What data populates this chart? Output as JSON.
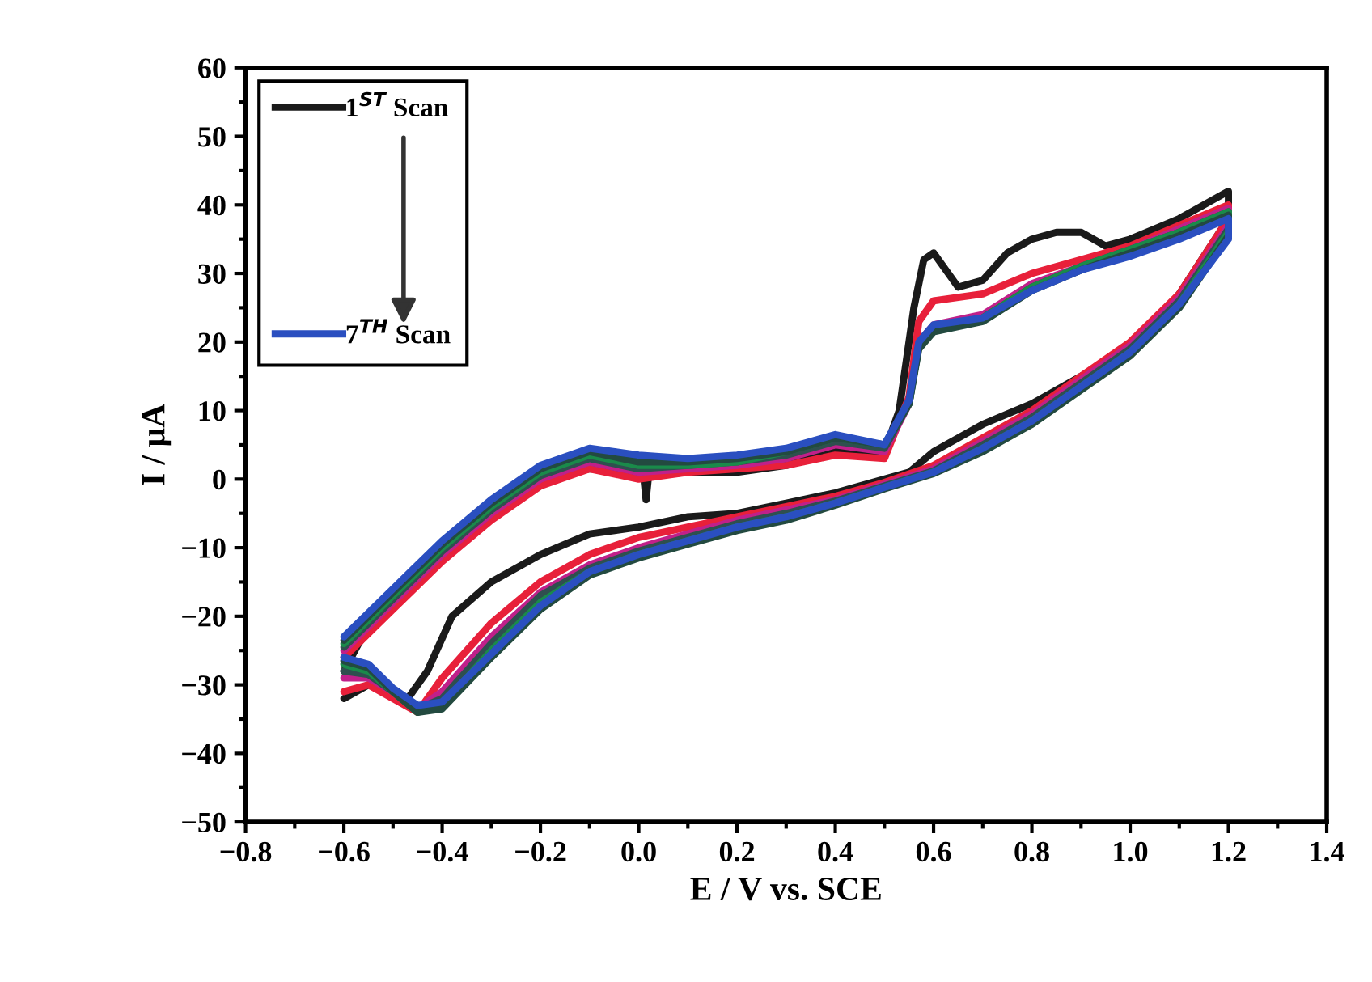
{
  "chart_data": {
    "type": "line",
    "xlabel": "E / V vs. SCE",
    "ylabel": "I / μA",
    "xlim": [
      -0.8,
      1.4
    ],
    "ylim": [
      -50,
      60
    ],
    "xticks": [
      -0.8,
      {
        "value": -0.7,
        "label": null
      },
      -0.6,
      {
        "value": -0.5,
        "label": null
      },
      -0.4,
      {
        "value": -0.3,
        "label": null
      },
      -0.2,
      {
        "value": -0.1,
        "label": null
      },
      {
        "value": 0,
        "label": "0.0"
      },
      {
        "value": 0.1,
        "label": null
      },
      0.2,
      {
        "value": 0.3,
        "label": null
      },
      0.4,
      {
        "value": 0.5,
        "label": null
      },
      0.6,
      {
        "value": 0.7,
        "label": null
      },
      0.8,
      {
        "value": 0.9,
        "label": null
      },
      {
        "value": 1,
        "label": "1.0"
      },
      {
        "value": 1.1,
        "label": null
      },
      1.2,
      {
        "value": 1.3,
        "label": null
      },
      1.4
    ],
    "yticks": [
      -50,
      {
        "value": -45,
        "label": null
      },
      -40,
      {
        "value": -35,
        "label": null
      },
      -30,
      {
        "value": -25,
        "label": null
      },
      -20,
      {
        "value": -15,
        "label": null
      },
      -10,
      {
        "value": -5,
        "label": null
      },
      0,
      {
        "value": 5,
        "label": null
      },
      10,
      {
        "value": 15,
        "label": null
      },
      20,
      {
        "value": 25,
        "label": null
      },
      30,
      {
        "value": 35,
        "label": null
      },
      40,
      {
        "value": 45,
        "label": null
      },
      50,
      {
        "value": 55,
        "label": null
      },
      60
    ],
    "grid": false,
    "legend": "top left",
    "line_style": "solid",
    "series": [
      {
        "name": "1$^{ST}$ Scan",
        "color": "#1a1a1a",
        "x": [
          -0.6,
          -0.55,
          -0.5,
          -0.47,
          -0.43,
          -0.38,
          -0.3,
          -0.2,
          -0.1,
          0.0,
          0.1,
          0.2,
          0.3,
          0.4,
          0.5,
          0.55,
          0.6,
          0.7,
          0.8,
          0.9,
          1.0,
          1.1,
          1.2,
          1.2,
          1.1,
          1.0,
          0.95,
          0.9,
          0.85,
          0.8,
          0.75,
          0.7,
          0.65,
          0.6,
          0.58,
          0.56,
          0.53,
          0.5,
          0.4,
          0.3,
          0.2,
          0.1,
          0.02,
          0.015,
          0.01,
          0.0,
          -0.1,
          -0.2,
          -0.3,
          -0.4,
          -0.5,
          -0.57,
          -0.6
        ],
        "values": [
          -32,
          -30,
          -31,
          -32,
          -28,
          -20,
          -15,
          -11,
          -8,
          -7,
          -5.5,
          -5,
          -3.5,
          -2,
          0,
          1,
          4,
          8,
          11,
          15,
          19,
          27,
          38,
          42,
          38,
          35,
          34,
          36,
          36,
          35,
          33,
          29,
          28,
          33,
          32,
          25,
          10,
          4,
          4,
          2,
          1,
          1,
          0.5,
          -3,
          0.5,
          1,
          1.5,
          0,
          -4,
          -10,
          -17,
          -24,
          -28
        ]
      },
      {
        "color": "#e8203a",
        "x": [
          -0.6,
          -0.55,
          -0.5,
          -0.45,
          -0.4,
          -0.3,
          -0.2,
          -0.1,
          0.0,
          0.1,
          0.2,
          0.3,
          0.4,
          0.5,
          0.6,
          0.7,
          0.8,
          0.9,
          1.0,
          1.1,
          1.2,
          1.2,
          1.1,
          1.0,
          0.9,
          0.8,
          0.7,
          0.6,
          0.57,
          0.55,
          0.5,
          0.4,
          0.3,
          0.2,
          0.1,
          0.0,
          -0.1,
          -0.2,
          -0.3,
          -0.4,
          -0.5,
          -0.6
        ],
        "values": [
          -31,
          -30,
          -32,
          -34,
          -29,
          -21,
          -15,
          -11,
          -8.5,
          -7,
          -5.5,
          -4,
          -2.5,
          -0.5,
          2,
          6,
          10,
          15,
          20,
          27,
          38,
          40,
          37,
          34,
          32,
          30,
          27,
          26,
          23,
          12,
          3,
          3.5,
          2,
          1.5,
          1,
          0,
          1.5,
          -1,
          -6,
          -12,
          -19,
          -26
        ]
      },
      {
        "color": "#c0208a",
        "x": [
          -0.6,
          -0.55,
          -0.5,
          -0.45,
          -0.4,
          -0.3,
          -0.2,
          -0.1,
          0.0,
          0.1,
          0.2,
          0.3,
          0.4,
          0.5,
          0.6,
          0.7,
          0.8,
          0.9,
          1.0,
          1.1,
          1.2,
          1.2,
          1.1,
          1.0,
          0.9,
          0.8,
          0.7,
          0.6,
          0.57,
          0.55,
          0.5,
          0.4,
          0.3,
          0.2,
          0.1,
          0.0,
          -0.1,
          -0.2,
          -0.3,
          -0.4,
          -0.5,
          -0.6
        ],
        "values": [
          -29,
          -29,
          -31,
          -33.5,
          -31,
          -23,
          -16.5,
          -12.5,
          -10,
          -8,
          -6,
          -4.5,
          -3,
          -0.8,
          1.5,
          5.5,
          9.5,
          14.5,
          19.5,
          26.5,
          37,
          39.5,
          36.5,
          33.5,
          31,
          28.5,
          24,
          22.5,
          20,
          11,
          4,
          5,
          3,
          2,
          1.5,
          1,
          2.5,
          0,
          -5,
          -11,
          -18,
          -25
        ]
      },
      {
        "color": "#2f4f4f",
        "x": [
          -0.6,
          -0.55,
          -0.5,
          -0.45,
          -0.4,
          -0.3,
          -0.2,
          -0.1,
          0.0,
          0.1,
          0.2,
          0.3,
          0.4,
          0.5,
          0.6,
          0.7,
          0.8,
          0.9,
          1.0,
          1.1,
          1.2,
          1.2,
          1.1,
          1.0,
          0.9,
          0.8,
          0.7,
          0.6,
          0.57,
          0.55,
          0.5,
          0.4,
          0.3,
          0.2,
          0.1,
          0.0,
          -0.1,
          -0.2,
          -0.3,
          -0.4,
          -0.5,
          -0.6
        ],
        "values": [
          -28,
          -28.5,
          -31,
          -33.5,
          -32,
          -24,
          -17,
          -13,
          -10.5,
          -8.5,
          -6.5,
          -5,
          -3.2,
          -1,
          1.2,
          5,
          9,
          14,
          19,
          26,
          36.5,
          39,
          36,
          33.5,
          31,
          28,
          23.5,
          22,
          19.5,
          11,
          4.5,
          5.5,
          3.5,
          2.5,
          2,
          1.5,
          3,
          0.5,
          -4.5,
          -10.5,
          -17.5,
          -24.5
        ]
      },
      {
        "color": "#1a8a4a",
        "x": [
          -0.6,
          -0.55,
          -0.5,
          -0.45,
          -0.4,
          -0.3,
          -0.2,
          -0.1,
          0.0,
          0.1,
          0.2,
          0.3,
          0.4,
          0.5,
          0.6,
          0.7,
          0.8,
          0.9,
          1.0,
          1.1,
          1.2,
          1.2,
          1.1,
          1.0,
          0.9,
          0.8,
          0.7,
          0.6,
          0.57,
          0.55,
          0.5,
          0.4,
          0.3,
          0.2,
          0.1,
          0.0,
          -0.1,
          -0.2,
          -0.3,
          -0.4,
          -0.5,
          -0.6
        ],
        "values": [
          -27,
          -28,
          -31,
          -34,
          -33,
          -25,
          -18,
          -13.5,
          -11,
          -9,
          -7,
          -5.5,
          -3.5,
          -1.2,
          1,
          4.5,
          8.5,
          13.5,
          18.5,
          25.5,
          36,
          39,
          36,
          33.5,
          31,
          28,
          23.5,
          22,
          19.5,
          11,
          5,
          6,
          4,
          2.5,
          2,
          2,
          3.5,
          1,
          -4,
          -10,
          -17,
          -24
        ]
      },
      {
        "color": "#234a40",
        "x": [
          -0.6,
          -0.55,
          -0.5,
          -0.45,
          -0.4,
          -0.3,
          -0.2,
          -0.1,
          0.0,
          0.1,
          0.2,
          0.3,
          0.4,
          0.5,
          0.6,
          0.7,
          0.8,
          0.9,
          1.0,
          1.1,
          1.2,
          1.2,
          1.1,
          1.0,
          0.9,
          0.8,
          0.7,
          0.6,
          0.57,
          0.55,
          0.5,
          0.4,
          0.3,
          0.2,
          0.1,
          0.0,
          -0.1,
          -0.2,
          -0.3,
          -0.4,
          -0.5,
          -0.6
        ],
        "values": [
          -26.5,
          -27.5,
          -31,
          -34,
          -33.5,
          -26,
          -19,
          -14,
          -11.5,
          -9.5,
          -7.5,
          -6,
          -3.8,
          -1.4,
          0.8,
          4,
          8,
          13,
          18,
          25,
          35.5,
          38.5,
          35.5,
          33,
          30.5,
          27.5,
          23,
          21.5,
          19,
          11,
          5,
          6,
          4,
          3,
          2.5,
          2.5,
          4,
          1.5,
          -3.5,
          -9.5,
          -16.5,
          -23.5
        ]
      },
      {
        "name": "7$^{TH}$ Scan",
        "color": "#2a4fc0",
        "x": [
          -0.6,
          -0.55,
          -0.5,
          -0.45,
          -0.4,
          -0.3,
          -0.2,
          -0.1,
          0.0,
          0.1,
          0.2,
          0.3,
          0.4,
          0.5,
          0.6,
          0.7,
          0.8,
          0.9,
          1.0,
          1.1,
          1.2,
          1.2,
          1.1,
          1.0,
          0.9,
          0.8,
          0.7,
          0.6,
          0.57,
          0.55,
          0.5,
          0.4,
          0.3,
          0.2,
          0.1,
          0.0,
          -0.1,
          -0.2,
          -0.3,
          -0.4,
          -0.5,
          -0.6
        ],
        "values": [
          -26,
          -27,
          -30.5,
          -33,
          -32.5,
          -25.5,
          -18.5,
          -13.5,
          -11,
          -9,
          -7,
          -5.5,
          -3.5,
          -1.2,
          1,
          4.5,
          8.5,
          13.5,
          18.5,
          25.5,
          35,
          38,
          35,
          32.5,
          30.5,
          27.5,
          23.5,
          22.5,
          20,
          11.5,
          5,
          6.5,
          4.5,
          3.5,
          3,
          3.5,
          4.5,
          2,
          -3,
          -9,
          -16,
          -23
        ]
      }
    ]
  }
}
